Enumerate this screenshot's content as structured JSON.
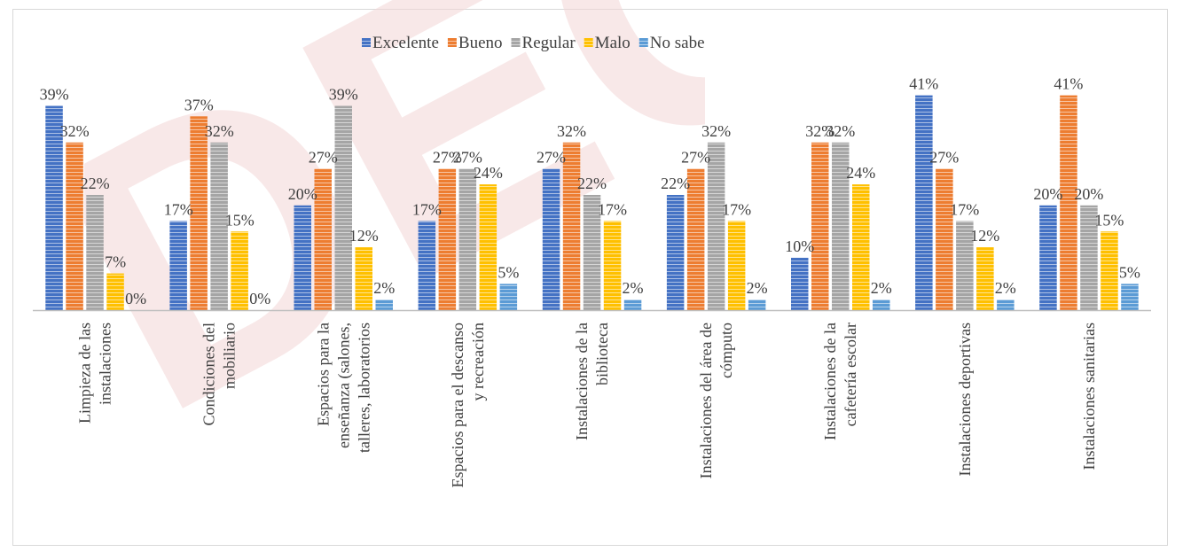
{
  "chart_data": {
    "type": "bar",
    "title": "",
    "xlabel": "",
    "ylabel": "",
    "ylim": [
      0,
      45
    ],
    "grid": false,
    "legend_position": "top",
    "categories": [
      [
        "Limpieza de las",
        "instalaciones"
      ],
      [
        "Condiciones del",
        "mobiliario"
      ],
      [
        "Espacios para la",
        "enseñanza (salones,",
        "talleres, laboratorios"
      ],
      [
        "Espacios para el descanso",
        "y recreación"
      ],
      [
        "Instalaciones de la",
        "biblioteca"
      ],
      [
        "Instalaciones del área de",
        "cómputo"
      ],
      [
        "Instalaciones de la",
        "cafetería escolar"
      ],
      [
        "Instalaciones deportivas"
      ],
      [
        "Instalaciones sanitarias"
      ]
    ],
    "series": [
      {
        "name": "Excelente",
        "color": "#4472c4",
        "values": [
          39,
          17,
          20,
          17,
          27,
          22,
          10,
          41,
          20
        ]
      },
      {
        "name": "Bueno",
        "color": "#ed7d31",
        "values": [
          32,
          37,
          27,
          27,
          32,
          27,
          32,
          27,
          41
        ]
      },
      {
        "name": "Regular",
        "color": "#a5a5a5",
        "values": [
          22,
          32,
          39,
          27,
          22,
          32,
          32,
          17,
          20
        ]
      },
      {
        "name": "Malo",
        "color": "#ffc000",
        "values": [
          7,
          15,
          12,
          24,
          17,
          17,
          24,
          12,
          15
        ]
      },
      {
        "name": "No sabe",
        "color": "#5b9bd5",
        "values": [
          0,
          0,
          2,
          5,
          2,
          2,
          2,
          2,
          5
        ]
      }
    ],
    "value_suffix": "%"
  }
}
